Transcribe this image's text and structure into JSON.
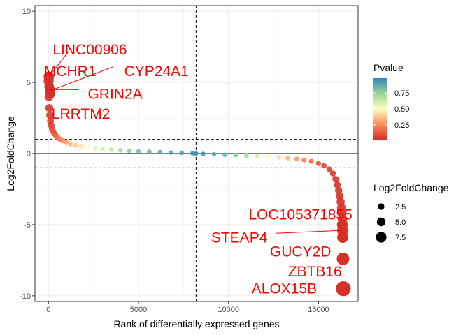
{
  "chart_data": {
    "type": "scatter",
    "xlabel": "Rank of differentially expressed genes",
    "ylabel": "Log2FoldChange",
    "xlim": [
      -750,
      17200
    ],
    "ylim": [
      -10.4,
      10.4
    ],
    "x_ticks": [
      0,
      5000,
      10000,
      15000
    ],
    "x_tick_labels": [
      "0",
      "5000",
      "10000",
      "15000"
    ],
    "y_ticks": [
      -10,
      -5,
      0,
      5,
      10
    ],
    "y_tick_labels": [
      "-10",
      "-5",
      "0",
      "5",
      "10"
    ],
    "grid": true,
    "hlines": {
      "solid": [
        0
      ],
      "dashed": [
        1,
        -1
      ]
    },
    "vlines": {
      "dashed": [
        8200
      ]
    },
    "series": [
      {
        "x": [
          10,
          30,
          50,
          80,
          110,
          150,
          200,
          260,
          330,
          420,
          520,
          650,
          800,
          1000,
          1200,
          1500,
          1800,
          2200,
          2600,
          3000,
          3500,
          4000,
          4500,
          5000,
          5600,
          6200,
          6800,
          7400,
          8000,
          8200,
          8600,
          9200,
          9800,
          10400,
          11000,
          11600,
          12200,
          12800,
          13300,
          13800,
          14200,
          14600,
          15000,
          15300,
          15600,
          15800,
          15950,
          16050,
          16120,
          16180,
          16230,
          16270,
          16300,
          16330,
          16360,
          16380
        ],
        "y": [
          5.1,
          4.0,
          3.2,
          2.7,
          2.3,
          2.0,
          1.75,
          1.55,
          1.4,
          1.25,
          1.1,
          1.0,
          0.9,
          0.78,
          0.68,
          0.58,
          0.5,
          0.43,
          0.37,
          0.32,
          0.27,
          0.23,
          0.19,
          0.16,
          0.13,
          0.1,
          0.07,
          0.05,
          0.02,
          0.0,
          -0.02,
          -0.05,
          -0.08,
          -0.11,
          -0.14,
          -0.18,
          -0.22,
          -0.27,
          -0.32,
          -0.38,
          -0.45,
          -0.55,
          -0.7,
          -0.85,
          -1.1,
          -1.4,
          -1.8,
          -2.2,
          -2.6,
          -3.0,
          -3.4,
          -3.8,
          -4.2,
          -4.6,
          -5.0,
          -5.4
        ],
        "pvalue": [
          0.02,
          0.02,
          0.03,
          0.04,
          0.05,
          0.06,
          0.08,
          0.1,
          0.12,
          0.15,
          0.18,
          0.22,
          0.26,
          0.3,
          0.35,
          0.4,
          0.45,
          0.5,
          0.55,
          0.6,
          0.65,
          0.7,
          0.75,
          0.8,
          0.85,
          0.88,
          0.9,
          0.92,
          0.95,
          0.96,
          0.94,
          0.9,
          0.85,
          0.78,
          0.7,
          0.6,
          0.5,
          0.42,
          0.35,
          0.28,
          0.22,
          0.17,
          0.12,
          0.08,
          0.06,
          0.04,
          0.03,
          0.02,
          0.02,
          0.02,
          0.02,
          0.02,
          0.02,
          0.02,
          0.02,
          0.02
        ]
      }
    ],
    "labeled_points": [
      {
        "name": "LINC00906",
        "x": 20,
        "y": 5.4,
        "pvalue": 0.02
      },
      {
        "name": "MCHR1",
        "x": 40,
        "y": 4.7,
        "pvalue": 0.02
      },
      {
        "name": "CYP24A1",
        "x": 60,
        "y": 4.4,
        "pvalue": 0.02
      },
      {
        "name": "GRIN2A",
        "x": 90,
        "y": 4.5,
        "pvalue": 0.02
      },
      {
        "name": "LRRTM2",
        "x": 120,
        "y": 4.2,
        "pvalue": 0.02
      },
      {
        "name": "LOC105371855",
        "x": 16300,
        "y": -5.0,
        "pvalue": 0.02
      },
      {
        "name": "STEAP4",
        "x": 16320,
        "y": -5.4,
        "pvalue": 0.02
      },
      {
        "name": "GUCY2D",
        "x": 16340,
        "y": -5.9,
        "pvalue": 0.02
      },
      {
        "name": "ZBTB16",
        "x": 16360,
        "y": -7.4,
        "pvalue": 0.02
      },
      {
        "name": "ALOX15B",
        "x": 16380,
        "y": -9.5,
        "pvalue": 0.02
      }
    ],
    "legend": {
      "color": {
        "title": "Pvalue",
        "ticks": [
          0.25,
          0.5,
          0.75
        ],
        "tick_labels": [
          "0.25",
          "0.50",
          "0.75"
        ],
        "range": [
          0.02,
          0.98
        ]
      },
      "size": {
        "title": "Log2FoldChange",
        "values": [
          2.5,
          5.0,
          7.5
        ],
        "labels": [
          "2.5",
          "5.0",
          "7.5"
        ]
      },
      "placement": "right"
    },
    "colors": {
      "low_pvalue": "#d73027",
      "mid_pvalue": "#ffffbf",
      "high_pvalue": "#3288bd",
      "label_text": "#ff0000",
      "label_line": "#ff0000"
    }
  }
}
